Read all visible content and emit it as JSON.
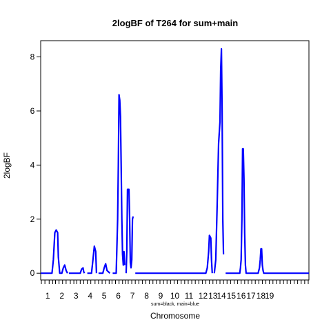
{
  "chart_data": {
    "type": "line",
    "title": "2logBF of T264 for sum+main",
    "xlabel": "Chromosome",
    "ylabel": "2logBF",
    "subtitle": "sum=black, main=blue",
    "ylim": [
      -0.25,
      8.6
    ],
    "yticks": [
      0,
      2,
      4,
      6,
      8
    ],
    "xlim": [
      0,
      19
    ],
    "chromosome_labels": [
      "1",
      "2",
      "3",
      "4",
      "5",
      "6",
      "7",
      "8",
      "9",
      "10",
      "11",
      "12",
      "13",
      "14",
      "15",
      "16",
      "17",
      "18",
      "19"
    ],
    "chromosome_centers": [
      0.5,
      1.5,
      2.5,
      3.5,
      4.5,
      5.5,
      6.5,
      7.5,
      8.5,
      9.5,
      10.5,
      11.5,
      12.2,
      12.8,
      13.5,
      14.2,
      14.9,
      15.6,
      16.2
    ],
    "marker_positions": [
      0.05,
      0.3,
      0.6,
      0.85,
      1.05,
      1.3,
      1.55,
      1.8,
      2.1,
      2.35,
      2.55,
      2.8,
      3.05,
      3.3,
      3.55,
      3.85,
      4.1,
      4.35,
      4.6,
      4.85,
      5.05,
      5.3,
      5.55,
      5.8,
      6.0,
      6.2,
      6.45,
      6.7,
      6.95,
      7.2,
      7.45,
      7.7,
      7.95,
      8.2,
      8.45,
      8.7,
      8.95,
      9.2,
      9.45,
      9.7,
      9.95,
      10.2,
      10.45,
      10.7,
      10.95,
      11.2,
      11.45,
      11.7,
      11.95,
      12.2,
      12.45,
      12.7,
      12.95,
      13.2,
      13.45,
      13.7,
      13.95,
      14.2,
      14.45,
      14.7,
      14.95,
      15.2,
      15.45,
      15.7,
      15.95,
      16.2,
      16.45,
      16.7,
      16.95,
      17.2,
      17.45,
      17.7,
      17.95,
      18.2,
      18.45,
      18.7,
      18.95
    ],
    "series": [
      {
        "color": "#0000ff",
        "segments": [
          [
            [
              0.0,
              0
            ],
            [
              0.8,
              0
            ],
            [
              0.9,
              0.5
            ],
            [
              1.0,
              1.5
            ],
            [
              1.1,
              1.6
            ],
            [
              1.2,
              1.5
            ],
            [
              1.25,
              0.6
            ],
            [
              1.35,
              0
            ],
            [
              1.5,
              0
            ],
            [
              1.6,
              0.2
            ],
            [
              1.7,
              0.3
            ],
            [
              1.8,
              0.1
            ],
            [
              1.9,
              0
            ]
          ],
          [
            [
              2.0,
              0
            ],
            [
              2.8,
              0
            ],
            [
              2.9,
              0.15
            ],
            [
              3.0,
              0.2
            ],
            [
              3.05,
              0.05
            ],
            [
              3.1,
              0
            ]
          ],
          [
            [
              3.3,
              0
            ],
            [
              3.6,
              0
            ],
            [
              3.7,
              0.5
            ],
            [
              3.8,
              1.0
            ],
            [
              3.9,
              0.8
            ],
            [
              3.95,
              0
            ]
          ],
          [
            [
              4.1,
              0
            ],
            [
              4.4,
              0
            ],
            [
              4.5,
              0.2
            ],
            [
              4.6,
              0.35
            ],
            [
              4.7,
              0.1
            ],
            [
              4.8,
              0.05
            ],
            [
              4.9,
              0
            ]
          ],
          [
            [
              5.1,
              0
            ],
            [
              5.35,
              0
            ],
            [
              5.45,
              2.0
            ],
            [
              5.5,
              4.0
            ],
            [
              5.55,
              6.6
            ],
            [
              5.6,
              6.4
            ],
            [
              5.65,
              5.8
            ],
            [
              5.7,
              4.0
            ],
            [
              5.75,
              2.0
            ],
            [
              5.8,
              0.7
            ],
            [
              5.85,
              0.3
            ],
            [
              5.9,
              0.8
            ],
            [
              5.95,
              0.3
            ]
          ],
          [
            [
              6.05,
              0
            ],
            [
              6.1,
              0.8
            ],
            [
              6.15,
              3.1
            ],
            [
              6.25,
              3.1
            ],
            [
              6.3,
              2.0
            ],
            [
              6.35,
              0.4
            ],
            [
              6.4,
              0.2
            ],
            [
              6.45,
              0.5
            ],
            [
              6.5,
              2.0
            ],
            [
              6.55,
              2.1
            ]
          ],
          [
            [
              6.7,
              0
            ],
            [
              11.7,
              0
            ],
            [
              11.8,
              0.2
            ],
            [
              11.9,
              0.8
            ],
            [
              11.95,
              1.4
            ],
            [
              12.05,
              1.3
            ],
            [
              12.1,
              0.5
            ],
            [
              12.15,
              0
            ]
          ],
          [
            [
              12.3,
              0
            ],
            [
              12.4,
              0.5
            ],
            [
              12.5,
              2.5
            ],
            [
              12.6,
              4.8
            ],
            [
              12.7,
              5.6
            ],
            [
              12.75,
              7.5
            ],
            [
              12.8,
              8.3
            ],
            [
              12.85,
              6.0
            ],
            [
              12.9,
              2.0
            ],
            [
              12.95,
              0.7
            ]
          ],
          [
            [
              13.1,
              0
            ],
            [
              14.1,
              0
            ],
            [
              14.15,
              0.2
            ],
            [
              14.2,
              0.5
            ],
            [
              14.25,
              2.0
            ],
            [
              14.3,
              4.6
            ],
            [
              14.35,
              4.6
            ],
            [
              14.4,
              3.5
            ],
            [
              14.45,
              1.5
            ],
            [
              14.5,
              0.3
            ],
            [
              14.55,
              0
            ],
            [
              15.4,
              0
            ],
            [
              15.5,
              0.2
            ],
            [
              15.55,
              0.5
            ],
            [
              15.6,
              0.9
            ],
            [
              15.65,
              0.9
            ],
            [
              15.7,
              0.3
            ],
            [
              15.75,
              0.1
            ],
            [
              15.8,
              0
            ],
            [
              19.0,
              0
            ]
          ]
        ]
      }
    ]
  }
}
